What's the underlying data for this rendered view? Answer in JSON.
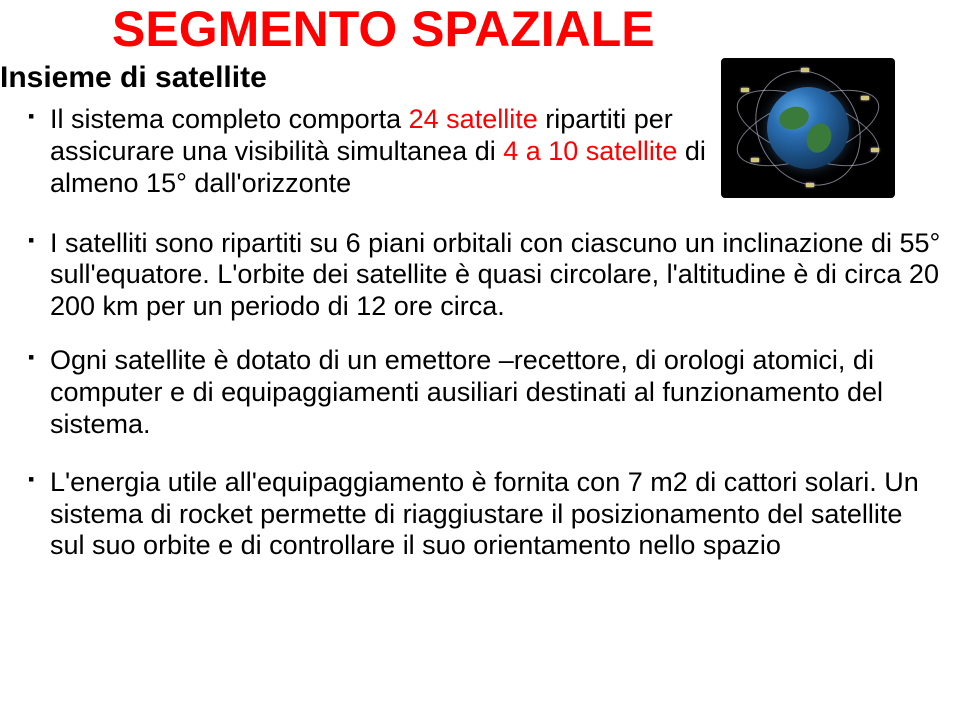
{
  "title": "SEGMENTO SPAZIALE",
  "subtitle": "Insieme di satellite",
  "image": {
    "name": "gps-constellation-illustration",
    "alt": "Earth with satellite constellation orbits"
  },
  "bullets": {
    "b1": {
      "prefix": "Il sistema completo comporta ",
      "red1": "24 satellite",
      "mid": " ripartiti per assicurare una visibilità simultanea di ",
      "red2": "4 a 10 satellite",
      "suffix": " di almeno 15° dall'orizzonte"
    },
    "b2": "I satelliti sono ripartiti su 6 piani orbitali con ciascuno un inclinazione di 55° sull'equatore. L'orbite dei satellite è quasi circolare, l'altitudine è di circa 20 200 km per un periodo di 12 ore circa.",
    "b3": "Ogni satellite è dotato di un emettore –recettore, di orologi atomici, di computer e di equipaggiamenti ausiliari destinati al funzionamento del sistema.",
    "b4": "L'energia utile all'equipaggiamento è fornita con 7 m2 di cattori solari. Un sistema di rocket permette di riaggiustare il posizionamento del satellite sul suo orbite e di controllare il suo orientamento nello spazio"
  },
  "colors": {
    "title": "#ff0000",
    "text": "#000000",
    "highlight": "#ff0000",
    "background": "#ffffff"
  },
  "typography": {
    "title_fontsize": 50,
    "subtitle_fontsize": 30,
    "body_fontsize": 27,
    "font_family": "Trebuchet MS"
  }
}
